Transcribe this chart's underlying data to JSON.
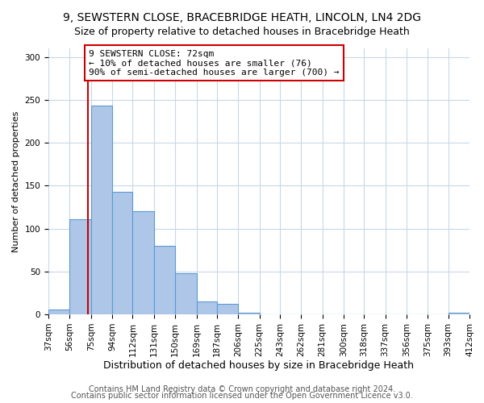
{
  "title1": "9, SEWSTERN CLOSE, BRACEBRIDGE HEATH, LINCOLN, LN4 2DG",
  "title2": "Size of property relative to detached houses in Bracebridge Heath",
  "xlabel": "Distribution of detached houses by size in Bracebridge Heath",
  "ylabel": "Number of detached properties",
  "footer1": "Contains HM Land Registry data © Crown copyright and database right 2024.",
  "footer2": "Contains public sector information licensed under the Open Government Licence v3.0.",
  "bin_edges": [
    37,
    56,
    75,
    94,
    112,
    131,
    150,
    169,
    187,
    206,
    225,
    243,
    262,
    281,
    300,
    318,
    337,
    356,
    375,
    393,
    412
  ],
  "bin_labels": [
    "37sqm",
    "56sqm",
    "75sqm",
    "94sqm",
    "112sqm",
    "131sqm",
    "150sqm",
    "169sqm",
    "187sqm",
    "206sqm",
    "225sqm",
    "243sqm",
    "262sqm",
    "281sqm",
    "300sqm",
    "318sqm",
    "337sqm",
    "356sqm",
    "375sqm",
    "393sqm",
    "412sqm"
  ],
  "bar_heights": [
    6,
    111,
    243,
    143,
    120,
    80,
    48,
    15,
    12,
    2,
    0,
    0,
    0,
    0,
    0,
    0,
    0,
    0,
    0,
    2
  ],
  "bar_color": "#aec6e8",
  "bar_edge_color": "#5b9bd5",
  "vline_x": 72,
  "vline_color": "#cc0000",
  "annotation_text": "9 SEWSTERN CLOSE: 72sqm\n← 10% of detached houses are smaller (76)\n90% of semi-detached houses are larger (700) →",
  "annotation_box_color": "#ffffff",
  "annotation_box_edge": "#cc0000",
  "ylim": [
    0,
    310
  ],
  "yticks": [
    0,
    50,
    100,
    150,
    200,
    250,
    300
  ],
  "background_color": "#ffffff",
  "grid_color": "#c8d8e8",
  "title1_fontsize": 10,
  "title2_fontsize": 9,
  "xlabel_fontsize": 9,
  "ylabel_fontsize": 8,
  "tick_fontsize": 7.5,
  "annotation_fontsize": 8,
  "footer_fontsize": 7
}
